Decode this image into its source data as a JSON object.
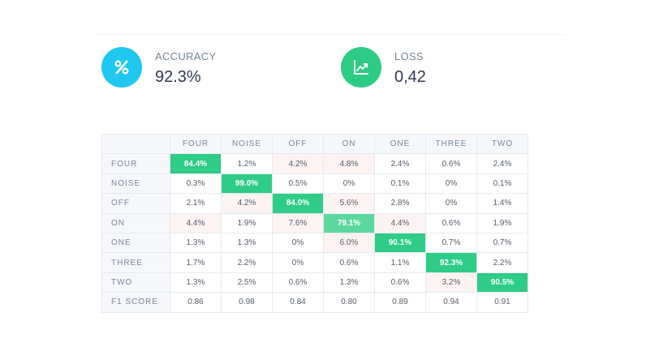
{
  "metrics": {
    "accuracy": {
      "label": "ACCURACY",
      "value": "92.3%",
      "color": "#1ec8f0",
      "icon": "percent-icon"
    },
    "loss": {
      "label": "LOSS",
      "value": "0,42",
      "color": "#2dcb84",
      "icon": "chart-up-icon"
    }
  },
  "matrix": {
    "columns": [
      "FOUR",
      "NOISE",
      "OFF",
      "ON",
      "ONE",
      "THREE",
      "TWO"
    ],
    "rows": [
      {
        "label": "FOUR",
        "cells": [
          "84.4%",
          "1.2%",
          "4.2%",
          "4.8%",
          "2.4%",
          "0.6%",
          "2.4%"
        ]
      },
      {
        "label": "NOISE",
        "cells": [
          "0.3%",
          "99.0%",
          "0.5%",
          "0%",
          "0.1%",
          "0%",
          "0.1%"
        ]
      },
      {
        "label": "OFF",
        "cells": [
          "2.1%",
          "4.2%",
          "84.0%",
          "5.6%",
          "2.8%",
          "0%",
          "1.4%"
        ]
      },
      {
        "label": "ON",
        "cells": [
          "4.4%",
          "1.9%",
          "7.6%",
          "79.1%",
          "4.4%",
          "0.6%",
          "1.9%"
        ]
      },
      {
        "label": "ONE",
        "cells": [
          "1.3%",
          "1.3%",
          "0%",
          "6.0%",
          "90.1%",
          "0.7%",
          "0.7%"
        ]
      },
      {
        "label": "THREE",
        "cells": [
          "1.7%",
          "2.2%",
          "0%",
          "0.6%",
          "1.1%",
          "92.3%",
          "2.2%"
        ]
      },
      {
        "label": "TWO",
        "cells": [
          "1.3%",
          "2.5%",
          "0.6%",
          "1.3%",
          "0.6%",
          "3.2%",
          "90.5%"
        ]
      }
    ],
    "f1": {
      "label": "F1 SCORE",
      "cells": [
        "0.86",
        "0.98",
        "0.84",
        "0.80",
        "0.89",
        "0.94",
        "0.91"
      ]
    },
    "colors": {
      "diagonal": "#2ecc87",
      "tint": "#fdf3f3"
    }
  }
}
